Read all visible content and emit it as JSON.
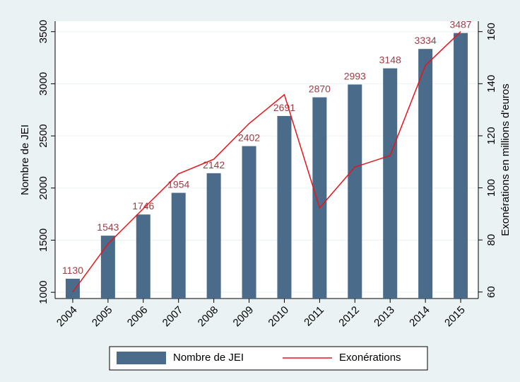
{
  "chart_data": {
    "type": "bar_line",
    "categories": [
      "2004",
      "2005",
      "2006",
      "2007",
      "2008",
      "2009",
      "2010",
      "2011",
      "2012",
      "2013",
      "2014",
      "2015"
    ],
    "series": [
      {
        "name": "Nombre de JEI",
        "color": "#4a6b8a",
        "type": "bar",
        "values": [
          1130,
          1543,
          1746,
          1954,
          2142,
          2402,
          2691,
          2870,
          2993,
          3148,
          3334,
          3487
        ]
      },
      {
        "name": "Exonérations",
        "color": "#e8141c",
        "type": "line",
        "axis": "y2",
        "values": [
          60,
          78.5,
          92,
          105.4,
          111,
          124.7,
          135.8,
          92.3,
          108,
          112.4,
          147,
          160
        ]
      }
    ],
    "ylabel": "Nombre de JEI",
    "y2label": "Exonérations en millions d'euros",
    "ylim": [
      940,
      3600
    ],
    "yticks": [
      1000,
      1500,
      2000,
      2500,
      3000,
      3500
    ],
    "y2lim": [
      57.5,
      164
    ],
    "y2ticks": [
      60,
      80,
      100,
      120,
      140,
      160
    ],
    "grid": true,
    "legend": "bottom"
  }
}
